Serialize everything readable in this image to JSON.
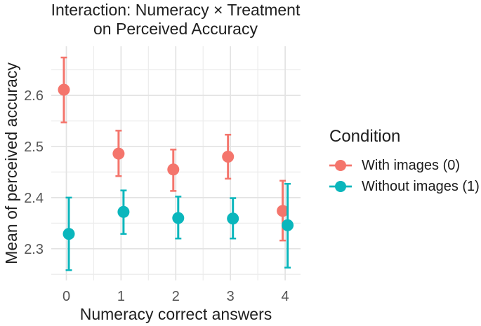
{
  "figure": {
    "title_lines": [
      "Interaction: Numeracy × Treatment",
      "on Perceived Accuracy"
    ]
  },
  "chart_data": {
    "type": "pointrange",
    "title": "Interaction: Numeracy × Treatment on Perceived Accuracy",
    "xlabel": "Numeracy correct answers",
    "ylabel": "Mean of perceived accuracy",
    "x_ticks": [
      "0",
      "1",
      "2",
      "3",
      "4"
    ],
    "y_ticks": [
      "2.3",
      "2.4",
      "2.5",
      "2.6"
    ],
    "y_minor_breaks": [
      2.25,
      2.35,
      2.45,
      2.55,
      2.65
    ],
    "ylim": [
      2.238,
      2.696
    ],
    "grid": true,
    "legend": {
      "title": "Condition",
      "position": "right",
      "entries": [
        "With images (0)",
        "Without images (1)"
      ]
    },
    "series": [
      {
        "name": "With images (0)",
        "color": "#F4756C",
        "points": [
          {
            "x": 0,
            "y": 2.611,
            "lo": 2.547,
            "hi": 2.674
          },
          {
            "x": 1,
            "y": 2.486,
            "lo": 2.442,
            "hi": 2.531
          },
          {
            "x": 2,
            "y": 2.455,
            "lo": 2.413,
            "hi": 2.494
          },
          {
            "x": 3,
            "y": 2.48,
            "lo": 2.437,
            "hi": 2.523
          },
          {
            "x": 4,
            "y": 2.374,
            "lo": 2.316,
            "hi": 2.433
          }
        ]
      },
      {
        "name": "Without images (1)",
        "color": "#0AB6BC",
        "points": [
          {
            "x": 0,
            "y": 2.329,
            "lo": 2.258,
            "hi": 2.4
          },
          {
            "x": 1,
            "y": 2.372,
            "lo": 2.329,
            "hi": 2.414
          },
          {
            "x": 2,
            "y": 2.36,
            "lo": 2.32,
            "hi": 2.402
          },
          {
            "x": 3,
            "y": 2.359,
            "lo": 2.32,
            "hi": 2.399
          },
          {
            "x": 4,
            "y": 2.346,
            "lo": 2.263,
            "hi": 2.427
          }
        ]
      }
    ]
  },
  "colors": {
    "tick_text": "#555555",
    "grid_major": "#E3E3E3",
    "grid_minor": "#ECECEC"
  }
}
